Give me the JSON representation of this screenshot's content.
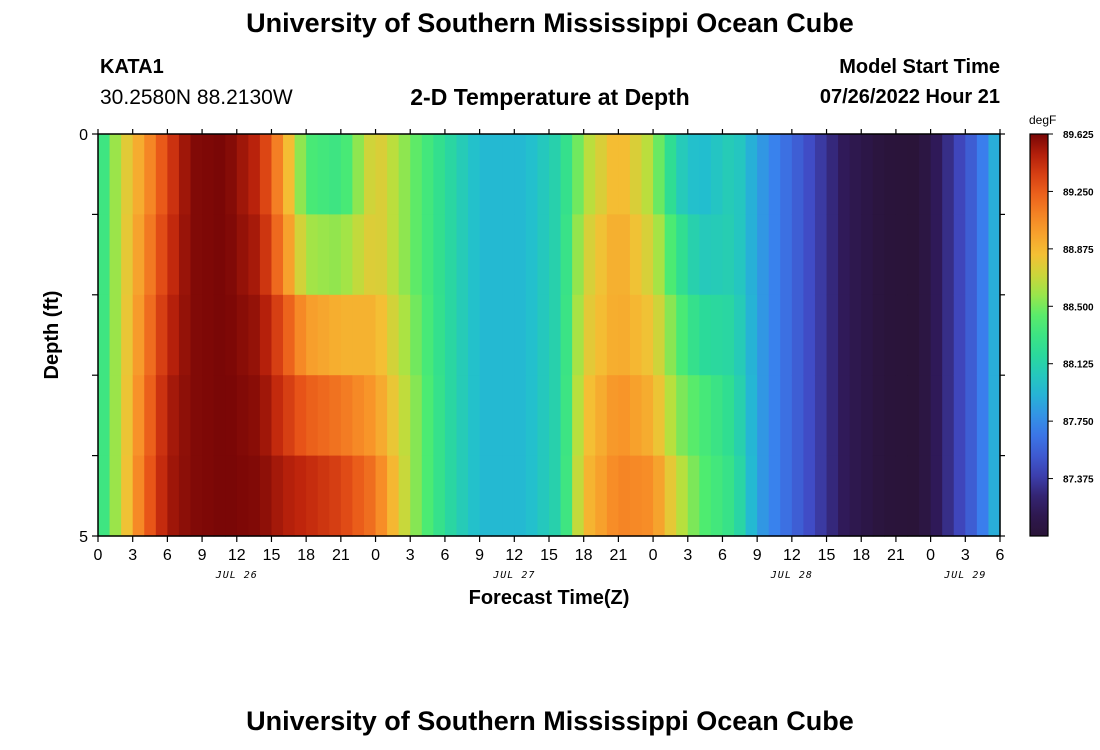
{
  "header": {
    "title": "University of Southern Mississippi Ocean Cube",
    "station_id": "KATA1",
    "coordinates": "30.2580N  88.2130W",
    "chart_title": "2-D Temperature at Depth",
    "start_label": "Model Start Time",
    "start_value": "07/26/2022 Hour 21"
  },
  "footer": {
    "title": "University of Southern Mississippi Ocean Cube"
  },
  "chart_data": {
    "type": "heatmap",
    "title": "2-D Temperature at Depth",
    "xlabel": "Forecast Time(Z)",
    "ylabel": "Depth (ft)",
    "x_range_hours": [
      0,
      78
    ],
    "y_range": [
      0,
      5
    ],
    "x_tick_labels": [
      "0",
      "3",
      "6",
      "9",
      "12",
      "15",
      "18",
      "21",
      "0",
      "3",
      "6",
      "9",
      "12",
      "15",
      "18",
      "21",
      "0",
      "3",
      "6",
      "9",
      "12",
      "15",
      "18",
      "21",
      "0",
      "3",
      "6"
    ],
    "y_tick_labels": [
      "0",
      "5"
    ],
    "date_labels": [
      {
        "label": "JUL 26",
        "hour": 12
      },
      {
        "label": "JUL 27",
        "hour": 36
      },
      {
        "label": "JUL 28",
        "hour": 60
      },
      {
        "label": "JUL 29",
        "hour": 75
      }
    ],
    "depth_rows": 5,
    "hour_step": 1,
    "colorbar": {
      "unit": "degF",
      "min": 87.0,
      "max": 89.625,
      "tick_labels": [
        "89.625",
        "89.250",
        "88.875",
        "88.500",
        "88.125",
        "87.750",
        "87.375"
      ]
    },
    "profile_keys": [
      {
        "hour": 0,
        "temps": [
          88.2,
          88.2,
          88.2,
          88.2,
          88.2
        ]
      },
      {
        "hour": 2,
        "temps": [
          88.7,
          88.7,
          88.7,
          88.7,
          88.7
        ]
      },
      {
        "hour": 4,
        "temps": [
          89.0,
          89.05,
          89.1,
          89.15,
          89.2
        ]
      },
      {
        "hour": 6,
        "temps": [
          89.35,
          89.4,
          89.45,
          89.5,
          89.52
        ]
      },
      {
        "hour": 8,
        "temps": [
          89.6,
          89.6,
          89.6,
          89.6,
          89.6
        ]
      },
      {
        "hour": 11,
        "temps": [
          89.625,
          89.625,
          89.625,
          89.625,
          89.625
        ]
      },
      {
        "hour": 14,
        "temps": [
          89.45,
          89.5,
          89.55,
          89.58,
          89.6
        ]
      },
      {
        "hour": 16,
        "temps": [
          89.0,
          89.1,
          89.3,
          89.4,
          89.5
        ]
      },
      {
        "hour": 18,
        "temps": [
          88.4,
          88.6,
          89.0,
          89.25,
          89.45
        ]
      },
      {
        "hour": 21,
        "temps": [
          88.3,
          88.55,
          88.9,
          89.15,
          89.35
        ]
      },
      {
        "hour": 24,
        "temps": [
          88.8,
          88.8,
          88.9,
          89.0,
          89.15
        ]
      },
      {
        "hour": 27,
        "temps": [
          88.5,
          88.5,
          88.55,
          88.6,
          88.6
        ]
      },
      {
        "hour": 30,
        "temps": [
          88.2,
          88.2,
          88.2,
          88.2,
          88.2
        ]
      },
      {
        "hour": 33,
        "temps": [
          87.95,
          87.95,
          87.95,
          87.95,
          87.95
        ]
      },
      {
        "hour": 37,
        "temps": [
          87.95,
          87.95,
          87.95,
          87.95,
          87.95
        ]
      },
      {
        "hour": 40,
        "temps": [
          88.15,
          88.15,
          88.15,
          88.15,
          88.15
        ]
      },
      {
        "hour": 42,
        "temps": [
          88.6,
          88.7,
          88.75,
          88.8,
          88.85
        ]
      },
      {
        "hour": 45,
        "temps": [
          88.9,
          88.95,
          88.95,
          89.05,
          89.1
        ]
      },
      {
        "hour": 48,
        "temps": [
          88.6,
          88.7,
          88.8,
          88.9,
          89.05
        ]
      },
      {
        "hour": 50,
        "temps": [
          88.1,
          88.3,
          88.45,
          88.55,
          88.7
        ]
      },
      {
        "hour": 52,
        "temps": [
          87.95,
          88.05,
          88.2,
          88.4,
          88.45
        ]
      },
      {
        "hour": 55,
        "temps": [
          88.1,
          88.1,
          88.15,
          88.2,
          88.25
        ]
      },
      {
        "hour": 57,
        "temps": [
          87.85,
          87.85,
          87.85,
          87.85,
          87.85
        ]
      },
      {
        "hour": 61,
        "temps": [
          87.5,
          87.5,
          87.5,
          87.5,
          87.5
        ]
      },
      {
        "hour": 65,
        "temps": [
          87.15,
          87.15,
          87.15,
          87.15,
          87.15
        ]
      },
      {
        "hour": 68,
        "temps": [
          87.02,
          87.02,
          87.02,
          87.02,
          87.02
        ]
      },
      {
        "hour": 71,
        "temps": [
          87.0,
          87.0,
          87.0,
          87.0,
          87.0
        ]
      },
      {
        "hour": 73,
        "temps": [
          87.25,
          87.25,
          87.25,
          87.25,
          87.25
        ]
      },
      {
        "hour": 76,
        "temps": [
          87.6,
          87.6,
          87.6,
          87.6,
          87.6
        ]
      },
      {
        "hour": 78,
        "temps": [
          88.0,
          88.0,
          88.0,
          88.0,
          88.0
        ]
      }
    ]
  }
}
